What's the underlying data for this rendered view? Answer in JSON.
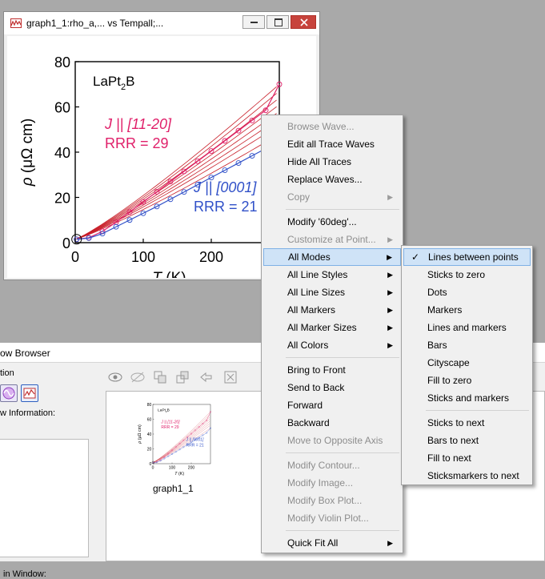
{
  "graph_window": {
    "title": "graph1_1:rho_a,... vs Tempall;...",
    "buttons": {
      "minimize": "—",
      "maximize": "☐",
      "close": "✕"
    }
  },
  "plot": {
    "compound_main": "LaPt",
    "compound_sub": "2",
    "compound_tail": "B",
    "ylabel_sym": "ρ",
    "ylabel_unit": "(μΩ cm)",
    "xlabel_sym": "T",
    "xlabel_unit": "(K)",
    "label_a_line1": "J || [11-20]",
    "label_a_line2": "RRR = 29",
    "label_b_line1": "J || [0001]",
    "label_b_line2": "RRR = 21",
    "colors": {
      "series_a": "#e0206a",
      "series_b": "#3050c8",
      "fan": "#c81e28"
    }
  },
  "chart_data": {
    "type": "line",
    "title": "",
    "xlabel": "T (K)",
    "ylabel": "ρ (μΩ cm)",
    "xlim": [
      0,
      300
    ],
    "ylim": [
      0,
      80
    ],
    "x_ticks": [
      0,
      100,
      200
    ],
    "y_ticks": [
      0,
      20,
      40,
      60,
      80
    ],
    "series": [
      {
        "name": "J || [11-20]",
        "x": [
          2,
          20,
          40,
          60,
          80,
          100,
          120,
          140,
          160,
          180,
          200,
          220,
          240,
          260,
          280,
          300
        ],
        "y": [
          1.5,
          2.2,
          5.0,
          9.0,
          13.5,
          18.0,
          22.5,
          27.0,
          31.5,
          36.0,
          40.5,
          45.0,
          49.5,
          54.0,
          58.5,
          70.0
        ]
      },
      {
        "name": "J || [0001]",
        "x": [
          2,
          20,
          40,
          60,
          80,
          100,
          120,
          140,
          160,
          180,
          200,
          220,
          240,
          260,
          280,
          300
        ],
        "y": [
          1.5,
          2.0,
          4.0,
          7.0,
          10.0,
          13.0,
          16.0,
          19.2,
          22.4,
          25.6,
          28.8,
          32.0,
          35.2,
          38.4,
          41.6,
          48.0
        ]
      }
    ],
    "fan_curves_end": [
      48,
      52,
      55,
      58,
      61,
      64,
      67,
      70
    ]
  },
  "browser": {
    "title": "ow Browser",
    "tion_label": "tion",
    "info_label": "w Information:",
    "window_label": "in Window:",
    "thumb_caption": "graph1_1",
    "thumb_compound": "LaPt2B"
  },
  "context_menu": {
    "items": [
      {
        "label": "Browse Wave...",
        "disabled": true,
        "submenu": false
      },
      {
        "label": "Edit all Trace Waves",
        "disabled": false,
        "submenu": false
      },
      {
        "label": "Hide All Traces",
        "disabled": false,
        "submenu": false
      },
      {
        "label": "Replace Waves...",
        "disabled": false,
        "submenu": false
      },
      {
        "label": "Copy",
        "disabled": true,
        "submenu": true
      },
      {
        "sep": true
      },
      {
        "label": "Modify '60deg'...",
        "disabled": false,
        "submenu": false
      },
      {
        "label": "Customize at Point...",
        "disabled": true,
        "submenu": true
      },
      {
        "label": "All Modes",
        "disabled": false,
        "submenu": true,
        "highlighted": true
      },
      {
        "label": "All Line Styles",
        "disabled": false,
        "submenu": true
      },
      {
        "label": "All Line Sizes",
        "disabled": false,
        "submenu": true
      },
      {
        "label": "All Markers",
        "disabled": false,
        "submenu": true
      },
      {
        "label": "All Marker Sizes",
        "disabled": false,
        "submenu": true
      },
      {
        "label": "All Colors",
        "disabled": false,
        "submenu": true
      },
      {
        "sep": true
      },
      {
        "label": "Bring to Front",
        "disabled": false,
        "submenu": false
      },
      {
        "label": "Send to Back",
        "disabled": false,
        "submenu": false
      },
      {
        "label": "Forward",
        "disabled": false,
        "submenu": false
      },
      {
        "label": "Backward",
        "disabled": false,
        "submenu": false
      },
      {
        "label": "Move to Opposite Axis",
        "disabled": true,
        "submenu": false
      },
      {
        "sep": true
      },
      {
        "label": "Modify Contour...",
        "disabled": true,
        "submenu": false
      },
      {
        "label": "Modify Image...",
        "disabled": true,
        "submenu": false
      },
      {
        "label": "Modify Box Plot...",
        "disabled": true,
        "submenu": false
      },
      {
        "label": "Modify Violin Plot...",
        "disabled": true,
        "submenu": false
      },
      {
        "sep": true
      },
      {
        "label": "Quick Fit All",
        "disabled": false,
        "submenu": true
      }
    ]
  },
  "submenu": {
    "items": [
      {
        "label": "Lines between points",
        "checked": true,
        "highlighted": true
      },
      {
        "label": "Sticks to zero"
      },
      {
        "label": "Dots"
      },
      {
        "label": "Markers"
      },
      {
        "label": "Lines and markers"
      },
      {
        "label": "Bars"
      },
      {
        "label": "Cityscape"
      },
      {
        "label": "Fill to zero"
      },
      {
        "label": "Sticks and markers"
      },
      {
        "sep": true
      },
      {
        "label": "Sticks to next"
      },
      {
        "label": "Bars to next"
      },
      {
        "label": "Fill to next"
      },
      {
        "label": "Sticksmarkers to next"
      }
    ]
  }
}
